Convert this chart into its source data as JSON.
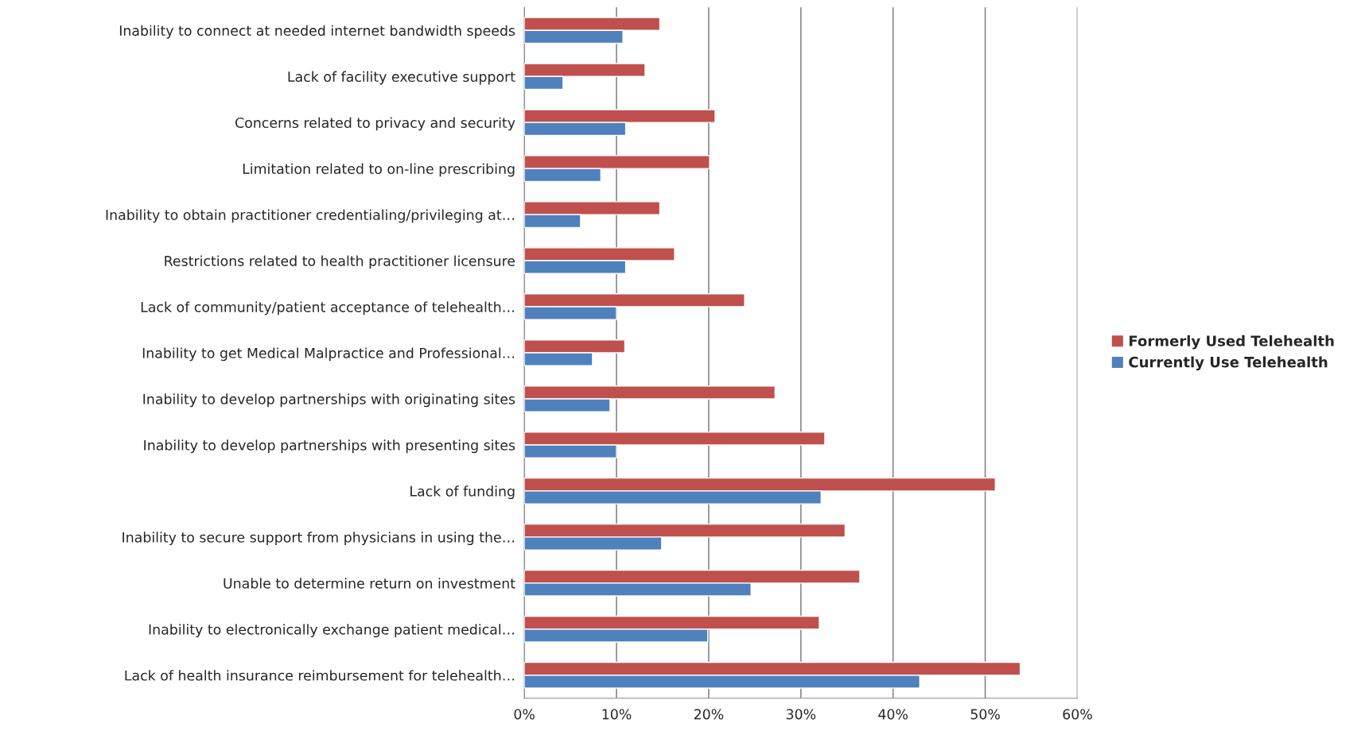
{
  "chart_data": {
    "type": "bar",
    "orientation": "horizontal",
    "categories": [
      "Inability to connect at needed internet bandwidth speeds",
      "Lack of facility executive support",
      "Concerns related to privacy and security",
      "Limitation related to on-line prescribing",
      "Inability to obtain practitioner credentialing/privileging at…",
      "Restrictions related to health practitioner licensure",
      "Lack of community/patient acceptance of telehealth…",
      "Inability to get Medical Malpractice and Professional…",
      "Inability to develop partnerships with originating sites",
      "Inability to develop partnerships with presenting sites",
      "Lack of funding",
      "Inability to secure support from physicians in using the…",
      "Unable to determine return on investment",
      "Inability to electronically exchange patient medical…",
      "Lack of health insurance reimbursement for telehealth…"
    ],
    "series": [
      {
        "name": "Formerly Used Telehealth",
        "color": "#c0504d",
        "values": [
          14.7,
          13.1,
          20.7,
          20.1,
          14.7,
          16.3,
          23.9,
          10.9,
          27.2,
          32.6,
          51.1,
          34.8,
          36.4,
          32.0,
          53.8
        ]
      },
      {
        "name": "Currently Use Telehealth",
        "color": "#4f81bd",
        "values": [
          10.7,
          4.2,
          11.0,
          8.3,
          6.1,
          11.0,
          10.0,
          7.4,
          9.3,
          10.0,
          32.2,
          14.9,
          24.6,
          19.9,
          42.9
        ]
      }
    ],
    "xlim": [
      0,
      60
    ],
    "xticks": [
      {
        "value": 0,
        "label": "0%"
      },
      {
        "value": 10,
        "label": "10%"
      },
      {
        "value": 20,
        "label": "20%"
      },
      {
        "value": 30,
        "label": "30%"
      },
      {
        "value": 40,
        "label": "40%"
      },
      {
        "value": 50,
        "label": "50%"
      },
      {
        "value": 60,
        "label": "60%"
      }
    ],
    "grid": "x",
    "legend": "right"
  }
}
